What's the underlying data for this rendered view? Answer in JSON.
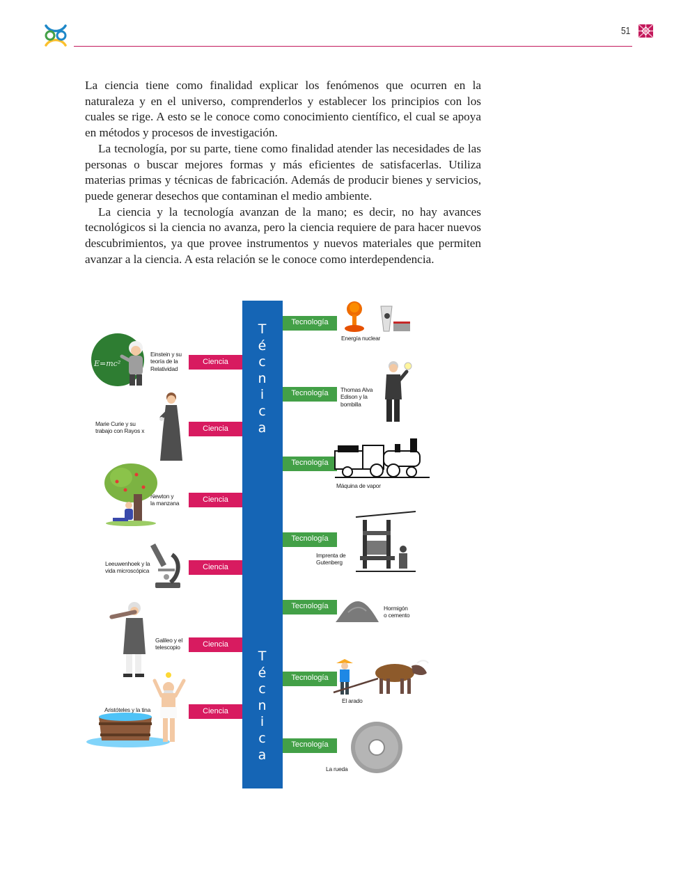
{
  "header": {
    "page_number": "51"
  },
  "body": {
    "paragraphs": [
      "La ciencia tiene como finalidad explicar los fenómenos que ocurren en la naturaleza y en el universo, comprenderlos y establecer los principios con los cuales se rige. A esto se le conoce como conocimiento científico, el cual se apoya en métodos y procesos de investigación.",
      "La tecnología, por su parte, tiene como finalidad atender las necesidades de las personas o buscar mejores formas y más eficientes de satisfacerlas. Utiliza materias primas y técnicas de fabricación. Además de producir bienes y servicios, puede generar desechos que contaminan el medio ambiente.",
      "La ciencia y la tecnología avanzan de la mano; es decir, no hay avances tecnológicos si la ciencia no avanza, pero la ciencia requiere de para hacer nuevos descubrimientos, ya que provee instrumentos y nuevos materiales que permiten avanzar a la ciencia. A esta relación se le conoce como interdependencia."
    ]
  },
  "diagram": {
    "column_word": [
      "T",
      "é",
      "c",
      "n",
      "i",
      "c",
      "a"
    ],
    "ciencia_label": "Ciencia",
    "tecnologia_label": "Tecnología",
    "ciencia_items": [
      {
        "caption": [
          "Einstein y su",
          "teoría de la",
          "Relatividad"
        ],
        "formula": "E=mc²"
      },
      {
        "caption": [
          "Marie Curie y su",
          "trabajo con Rayos x"
        ]
      },
      {
        "caption": [
          "Newton y",
          "la manzana"
        ]
      },
      {
        "caption": [
          "Leeuwenhoek y la",
          "vida microscópica"
        ]
      },
      {
        "caption": [
          "Galileo y el",
          "telescopio"
        ]
      },
      {
        "caption": [
          "Aristóteles y la tina"
        ]
      }
    ],
    "tecnologia_items": [
      {
        "caption": [
          "Energía nuclear"
        ]
      },
      {
        "caption": [
          "Thomas Alva",
          "Edison y la",
          "bombilla"
        ]
      },
      {
        "caption": [
          "Máquina de vapor"
        ]
      },
      {
        "caption": [
          "Imprenta de",
          "Gutenberg"
        ]
      },
      {
        "caption": [
          "Hormigón",
          "o cemento"
        ]
      },
      {
        "caption": [
          "El arado"
        ]
      },
      {
        "caption": [
          "La rueda"
        ]
      }
    ]
  },
  "colors": {
    "accent_rule": "#c2185b",
    "column_blue": "#1565b5",
    "ciencia_pink": "#d81b60",
    "tecnologia_green": "#43a047"
  }
}
